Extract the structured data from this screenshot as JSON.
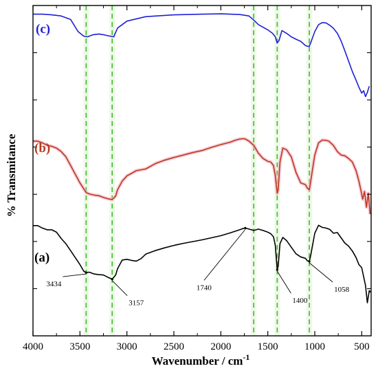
{
  "chart_data": {
    "type": "line",
    "xlabel": "Wavenumber / cm",
    "xlabel_superscript": "-1",
    "ylabel": "% Transmitance",
    "xlim": [
      4000,
      400
    ],
    "x_reversed": true,
    "x_ticks": [
      4000,
      3500,
      3000,
      2500,
      2000,
      1500,
      1000,
      500
    ],
    "y_tick_labels": false,
    "legend": "none",
    "series": [
      {
        "name": "(c)",
        "color": "#1f1fd6",
        "x": [
          4000,
          3900,
          3800,
          3700,
          3600,
          3520,
          3460,
          3420,
          3360,
          3300,
          3250,
          3200,
          3140,
          3100,
          3000,
          2800,
          2500,
          2200,
          2000,
          1800,
          1700,
          1650,
          1600,
          1500,
          1450,
          1420,
          1400,
          1380,
          1350,
          1300,
          1250,
          1200,
          1150,
          1100,
          1080,
          1060,
          1040,
          1000,
          960,
          920,
          880,
          840,
          800,
          760,
          720,
          680,
          640,
          600,
          560,
          530,
          500,
          480,
          460,
          440,
          420
        ],
        "y": [
          97.5,
          97.5,
          97.3,
          97.0,
          96.0,
          92.5,
          91.2,
          91.0,
          91.6,
          91.8,
          91.6,
          91.3,
          91.0,
          93.5,
          95.5,
          96.8,
          97.3,
          97.5,
          97.6,
          97.4,
          97.0,
          95.8,
          94.5,
          93.0,
          92.0,
          91.0,
          89.2,
          90.0,
          92.8,
          92.0,
          91.0,
          90.3,
          89.7,
          88.5,
          88.3,
          88.2,
          89.5,
          92.5,
          94.5,
          95.1,
          95.0,
          94.3,
          93.4,
          92.0,
          89.8,
          87.0,
          84.0,
          81.0,
          78.5,
          76.5,
          74.8,
          75.5,
          73.8,
          75.0,
          76.8
        ]
      },
      {
        "name": "(b)",
        "color": "#b83a1e",
        "x": [
          4000,
          3950,
          3900,
          3850,
          3800,
          3750,
          3700,
          3650,
          3600,
          3550,
          3500,
          3460,
          3434,
          3400,
          3350,
          3300,
          3250,
          3200,
          3157,
          3120,
          3100,
          3050,
          3000,
          2900,
          2800,
          2700,
          2600,
          2500,
          2400,
          2300,
          2200,
          2100,
          2000,
          1900,
          1850,
          1800,
          1760,
          1740,
          1700,
          1650,
          1600,
          1550,
          1500,
          1470,
          1440,
          1420,
          1400,
          1390,
          1370,
          1340,
          1300,
          1250,
          1200,
          1150,
          1100,
          1080,
          1058,
          1040,
          1000,
          960,
          920,
          880,
          850,
          800,
          760,
          720,
          680,
          640,
          600,
          560,
          530,
          510,
          490,
          470,
          450,
          430,
          410
        ],
        "y": [
          61.0,
          61.0,
          60.5,
          59.8,
          59.5,
          59.0,
          58.0,
          56.5,
          54.0,
          51.5,
          49.0,
          47.3,
          46.2,
          45.8,
          45.5,
          45.3,
          44.8,
          44.4,
          44.2,
          45.2,
          47.0,
          49.5,
          51.0,
          52.5,
          53.0,
          54.5,
          55.5,
          56.3,
          57.0,
          57.7,
          58.3,
          59.2,
          60.0,
          60.7,
          61.2,
          61.6,
          61.7,
          61.6,
          61.0,
          59.8,
          57.5,
          56.0,
          55.2,
          55.0,
          54.0,
          51.0,
          46.0,
          47.0,
          55.0,
          59.0,
          58.5,
          56.5,
          52.0,
          49.0,
          48.5,
          47.5,
          47.0,
          50.0,
          57.0,
          60.5,
          61.3,
          61.2,
          61.0,
          59.7,
          58.0,
          57.0,
          56.8,
          56.0,
          55.0,
          52.5,
          49.5,
          47.0,
          44.3,
          46.5,
          42.0,
          46.0,
          40.0
        ]
      },
      {
        "name": "(a)",
        "color": "#000000",
        "x": [
          4000,
          3950,
          3900,
          3850,
          3800,
          3750,
          3700,
          3650,
          3600,
          3550,
          3500,
          3460,
          3434,
          3400,
          3350,
          3300,
          3250,
          3200,
          3157,
          3120,
          3100,
          3050,
          3000,
          2950,
          2900,
          2850,
          2800,
          2700,
          2600,
          2500,
          2400,
          2300,
          2200,
          2100,
          2000,
          1900,
          1800,
          1760,
          1740,
          1700,
          1650,
          1600,
          1550,
          1500,
          1470,
          1440,
          1420,
          1400,
          1390,
          1370,
          1340,
          1300,
          1250,
          1200,
          1150,
          1100,
          1080,
          1058,
          1040,
          1000,
          960,
          920,
          880,
          840,
          800,
          760,
          720,
          680,
          640,
          600,
          560,
          530,
          500,
          480,
          460,
          440,
          420,
          405
        ],
        "y": [
          36.7,
          36.7,
          36.0,
          35.5,
          35.5,
          34.8,
          33.0,
          31.5,
          29.5,
          27.5,
          25.5,
          23.6,
          23.2,
          23.3,
          22.8,
          22.6,
          22.5,
          21.8,
          21.3,
          22.5,
          24.3,
          26.8,
          27.0,
          26.7,
          26.5,
          27.2,
          28.5,
          29.5,
          30.3,
          31.0,
          31.6,
          32.1,
          32.6,
          33.2,
          33.8,
          34.6,
          35.5,
          35.9,
          36.0,
          35.7,
          35.3,
          35.7,
          35.3,
          34.8,
          34.4,
          33.5,
          31.0,
          24.0,
          25.0,
          31.5,
          33.3,
          32.4,
          30.5,
          28.6,
          27.7,
          27.3,
          26.6,
          26.4,
          28.6,
          34.5,
          36.8,
          36.2,
          36.0,
          35.6,
          34.5,
          34.7,
          33.2,
          31.7,
          30.8,
          29.4,
          27.5,
          25.5,
          24.6,
          22.0,
          19.5,
          14.5,
          18.0,
          17.5
        ]
      }
    ],
    "reference_lines": [
      3434,
      3157,
      1650,
      1400,
      1058
    ],
    "annotations": [
      {
        "label": "3434",
        "wavenumber": 3434,
        "series": "(a)"
      },
      {
        "label": "3157",
        "wavenumber": 3157,
        "series": "(a)"
      },
      {
        "label": "1740",
        "wavenumber": 1740,
        "series": "(a)"
      },
      {
        "label": "1400",
        "wavenumber": 1400,
        "series": "(a)"
      },
      {
        "label": "1058",
        "wavenumber": 1058,
        "series": "(a)"
      }
    ]
  }
}
